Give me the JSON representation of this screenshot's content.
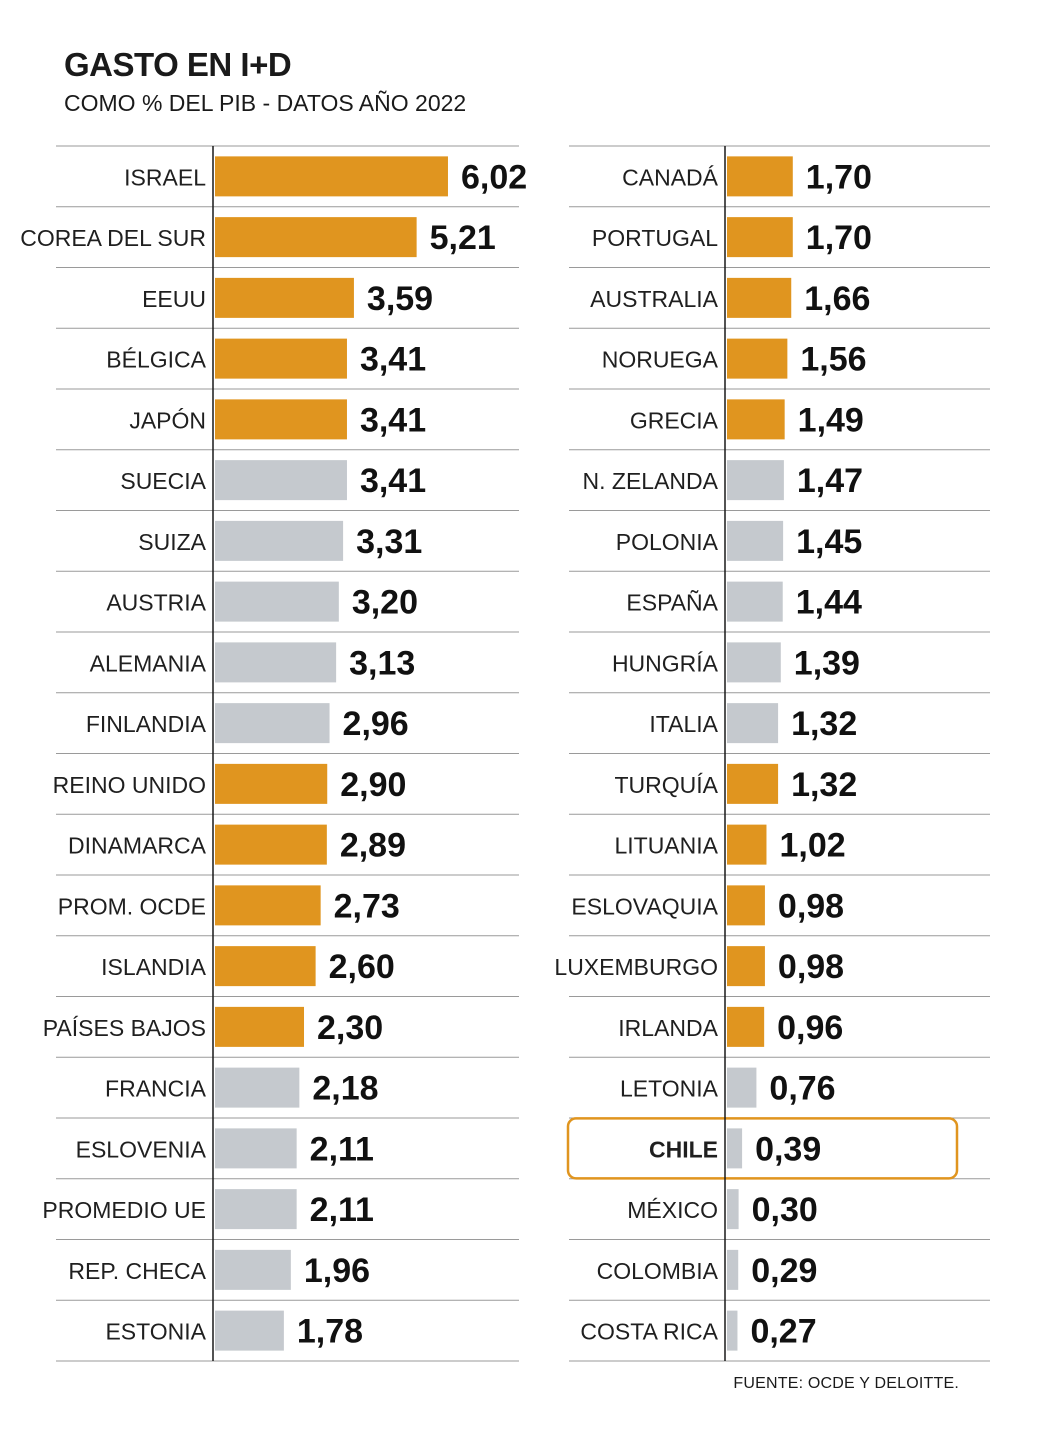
{
  "title": "GASTO EN I+D",
  "subtitle": "COMO % DEL PIB - DATOS AÑO 2022",
  "source": "FUENTE: OCDE Y DELOITTE.",
  "colors": {
    "orange": "#E0951F",
    "gray": "#C5C9CE",
    "highlight_border": "#E0951F",
    "rule": "#9a9a9a"
  },
  "chart_data": {
    "type": "bar",
    "orientation": "horizontal",
    "title": "GASTO EN I+D",
    "subtitle": "COMO % DEL PIB - DATOS AÑO 2022",
    "value_format": "comma-decimal",
    "panels": [
      {
        "categories": [
          "ISRAEL",
          "COREA DEL SUR",
          "EEUU",
          "BÉLGICA",
          "JAPÓN",
          "SUECIA",
          "SUIZA",
          "AUSTRIA",
          "ALEMANIA",
          "FINLANDIA",
          "REINO UNIDO",
          "DINAMARCA",
          "PROM. OCDE",
          "ISLANDIA",
          "PAÍSES BAJOS",
          "FRANCIA",
          "ESLOVENIA",
          "PROMEDIO UE",
          "REP. CHECA",
          "ESTONIA"
        ],
        "values": [
          6.02,
          5.21,
          3.59,
          3.41,
          3.41,
          3.41,
          3.31,
          3.2,
          3.13,
          2.96,
          2.9,
          2.89,
          2.73,
          2.6,
          2.3,
          2.18,
          2.11,
          2.11,
          1.96,
          1.78
        ],
        "colors": [
          "orange",
          "orange",
          "orange",
          "orange",
          "orange",
          "gray",
          "gray",
          "gray",
          "gray",
          "gray",
          "orange",
          "orange",
          "orange",
          "orange",
          "orange",
          "gray",
          "gray",
          "gray",
          "gray",
          "gray"
        ]
      },
      {
        "categories": [
          "CANADÁ",
          "PORTUGAL",
          "AUSTRALIA",
          "NORUEGA",
          "GRECIA",
          "N. ZELANDA",
          "POLONIA",
          "ESPAÑA",
          "HUNGRÍA",
          "ITALIA",
          "TURQUÍA",
          "LITUANIA",
          "ESLOVAQUIA",
          "LUXEMBURGO",
          "IRLANDA",
          "LETONIA",
          "CHILE",
          "MÉXICO",
          "COLOMBIA",
          "COSTA RICA"
        ],
        "values": [
          1.7,
          1.7,
          1.66,
          1.56,
          1.49,
          1.47,
          1.45,
          1.44,
          1.39,
          1.32,
          1.32,
          1.02,
          0.98,
          0.98,
          0.96,
          0.76,
          0.39,
          0.3,
          0.29,
          0.27
        ],
        "colors": [
          "orange",
          "orange",
          "orange",
          "orange",
          "orange",
          "gray",
          "gray",
          "gray",
          "gray",
          "gray",
          "orange",
          "orange",
          "orange",
          "orange",
          "orange",
          "gray",
          "gray",
          "gray",
          "gray",
          "gray"
        ],
        "highlight": "CHILE"
      }
    ]
  }
}
